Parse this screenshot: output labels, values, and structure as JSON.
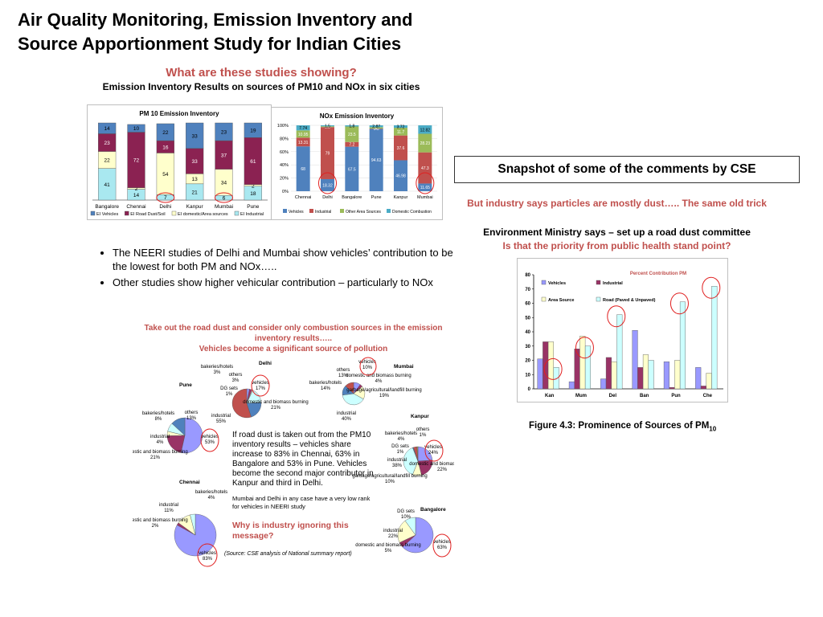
{
  "slide": {
    "title_line1": "Air Quality Monitoring, Emission Inventory and",
    "title_line2": "Source Apportionment Study for Indian Cities",
    "question": "What are these studies showing?",
    "ei_title": "Emission Inventory Results on sources of PM10 and NOx in six cities",
    "bullets": [
      "The NEERI studies of Delhi and Mumbai show vehicles’ contribution to be the lowest for both PM and NOx…..",
      "Other studies show higher vehicular contribution – particularly to NOx"
    ],
    "snapshot": "Snapshot of some of the comments by CSE",
    "industry_says": "But industry says particles are mostly dust….. The same old trick",
    "ministry_says": "Environment Ministry says – set up a road dust committee",
    "priority": "Is that the priority from public health stand point?",
    "figure_caption": "Figure 4.3: Prominence of Sources of PM",
    "figure_caption_sub": "10",
    "combustion_title": "Take out the road dust and consider only combustion sources in the emission inventory results…..",
    "combustion_sub": "Vehicles become a significant source of pollution",
    "road_dust_note": "If road dust is taken out from the PM10 inventory results – vehicles share increase to 83% in Chennai, 63% in Bangalore and 53% in Pune. Vehicles become the second major contributor in Kanpur and third in Delhi.",
    "mumbai_delhi_note": "Mumbai and Delhi in any case have a very low rank for vehicles in NEERI study",
    "ignoring": "Why is industry ignoring this message?",
    "source_note": "(Source: CSE analysis of National summary report)"
  },
  "colors": {
    "vehicles": "#4f81bd",
    "road_dust": "#8b2252",
    "domestic": "#ffffcc",
    "industrial": "#a9e8f0",
    "nox_vehicles": "#4f81bd",
    "nox_industrial": "#c0504d",
    "nox_area": "#9bbb59",
    "nox_domestic": "#4bacc6",
    "highlight": "#e02020",
    "red_text": "#c0504d"
  },
  "chart_data": [
    {
      "type": "bar",
      "title": "PM 10 Emission Inventory",
      "stacked": true,
      "categories": [
        "Bangalore",
        "Chennai",
        "Delhi",
        "Kanpur",
        "Mumbai",
        "Pune"
      ],
      "series": [
        {
          "name": "EI Vehicles",
          "values": [
            14,
            10,
            22,
            33,
            23,
            19
          ]
        },
        {
          "name": "EI Road Dust/Soil",
          "values": [
            23,
            72,
            16,
            33,
            37,
            61
          ]
        },
        {
          "name": "EI domestic/Area sources",
          "values": [
            22,
            2,
            54,
            13,
            34,
            2
          ]
        },
        {
          "name": "EI Industrial",
          "values": [
            41,
            14,
            7,
            21,
            6,
            18
          ]
        }
      ],
      "ylim": [
        0,
        100
      ]
    },
    {
      "type": "bar",
      "title": "NOx Emission Inventory",
      "stacked": true,
      "categories": [
        "Chennai",
        "Delhi",
        "Bangalore",
        "Pune",
        "Kanpur",
        "Mumbai"
      ],
      "series": [
        {
          "name": "Vehicles",
          "values": [
            68,
            18.32,
            67.5,
            94.63,
            46.98,
            11.65
          ]
        },
        {
          "name": "Industrial",
          "values": [
            13.31,
            79,
            7.2,
            0.5,
            37.6,
            47.3
          ]
        },
        {
          "name": "Other Area Sources",
          "values": [
            10.95,
            1.2,
            23.5,
            2,
            11.7,
            28.23
          ]
        },
        {
          "name": "Domestic Combustion",
          "values": [
            7.74,
            1.5,
            1.8,
            2.87,
            3.72,
            12.82
          ]
        }
      ],
      "yticks": [
        "0%",
        "20%",
        "40%",
        "60%",
        "80%",
        "100%"
      ],
      "ylim": [
        0,
        100
      ]
    },
    {
      "type": "bar",
      "title": "Percent Contribution PM",
      "categories": [
        "Kan",
        "Mum",
        "Del",
        "Ban",
        "Pun",
        "Che"
      ],
      "series": [
        {
          "name": "Vehicles",
          "values": [
            21,
            5,
            7,
            41,
            19,
            15
          ]
        },
        {
          "name": "Industrial",
          "values": [
            33,
            28,
            22,
            15,
            1,
            2
          ]
        },
        {
          "name": "Area Source",
          "values": [
            33,
            37,
            19,
            24,
            20,
            11
          ]
        },
        {
          "name": "Road (Paved & Unpaved)",
          "values": [
            15,
            30,
            52,
            20,
            61,
            72
          ]
        }
      ],
      "ylim": [
        0,
        80
      ],
      "yticks": [
        0,
        10,
        20,
        30,
        40,
        50,
        60,
        70,
        80
      ]
    },
    {
      "type": "pie",
      "title": "Delhi",
      "slices": [
        {
          "label": "bakeries/hotels",
          "pct": "3%",
          "value": 3
        },
        {
          "label": "others",
          "pct": "3%",
          "value": 3
        },
        {
          "label": "DG sets",
          "pct": "1%",
          "value": 1
        },
        {
          "label": "vehicles",
          "pct": "17%",
          "value": 17
        },
        {
          "label": "domestic and biomass burning",
          "pct": "21%",
          "value": 21
        },
        {
          "label": "industrial",
          "pct": "55%",
          "value": 55
        }
      ]
    },
    {
      "type": "pie",
      "title": "Mumbai",
      "slices": [
        {
          "label": "vehicles",
          "pct": "10%",
          "value": 10
        },
        {
          "label": "domestic and biomass burning",
          "pct": "4%",
          "value": 4
        },
        {
          "label": "garbage/agricultural/landfill burning",
          "pct": "19%",
          "value": 19
        },
        {
          "label": "industrial",
          "pct": "40%",
          "value": 40
        },
        {
          "label": "bakeries/hotels",
          "pct": "14%",
          "value": 14
        },
        {
          "label": "others",
          "pct": "13%",
          "value": 13
        }
      ]
    },
    {
      "type": "pie",
      "title": "Pune",
      "slices": [
        {
          "label": "vehicles",
          "pct": "53%",
          "value": 53
        },
        {
          "label": "domestic and biomass burning",
          "pct": "21%",
          "value": 21
        },
        {
          "label": "industrial",
          "pct": "4%",
          "value": 4
        },
        {
          "label": "bakeries/hotels",
          "pct": "8%",
          "value": 8
        },
        {
          "label": "others",
          "pct": "13%",
          "value": 13
        }
      ]
    },
    {
      "type": "pie",
      "title": "Kanpur",
      "slices": [
        {
          "label": "vehicles",
          "pct": "24%",
          "value": 24
        },
        {
          "label": "domestic and biomass burning",
          "pct": "22%",
          "value": 22
        },
        {
          "label": "garbage/agricultural/landfill burning",
          "pct": "10%",
          "value": 10
        },
        {
          "label": "industrial",
          "pct": "38%",
          "value": 38
        },
        {
          "label": "DG sets",
          "pct": "1%",
          "value": 1
        },
        {
          "label": "bakeries/hotels",
          "pct": "4%",
          "value": 4
        },
        {
          "label": "others",
          "pct": "1%",
          "value": 1
        }
      ]
    },
    {
      "type": "pie",
      "title": "Chennai",
      "slices": [
        {
          "label": "vehicles",
          "pct": "83%",
          "value": 83
        },
        {
          "label": "domestic and biomass burning",
          "pct": "2%",
          "value": 2
        },
        {
          "label": "industrial",
          "pct": "11%",
          "value": 11
        },
        {
          "label": "bakeries/hotels",
          "pct": "4%",
          "value": 4
        }
      ]
    },
    {
      "type": "pie",
      "title": "Bangalore",
      "slices": [
        {
          "label": "vehicles",
          "pct": "63%",
          "value": 63
        },
        {
          "label": "domestic and biomass burning",
          "pct": "5%",
          "value": 5
        },
        {
          "label": "industrial",
          "pct": "22%",
          "value": 22
        },
        {
          "label": "DG sets",
          "pct": "10%",
          "value": 10
        }
      ]
    }
  ]
}
